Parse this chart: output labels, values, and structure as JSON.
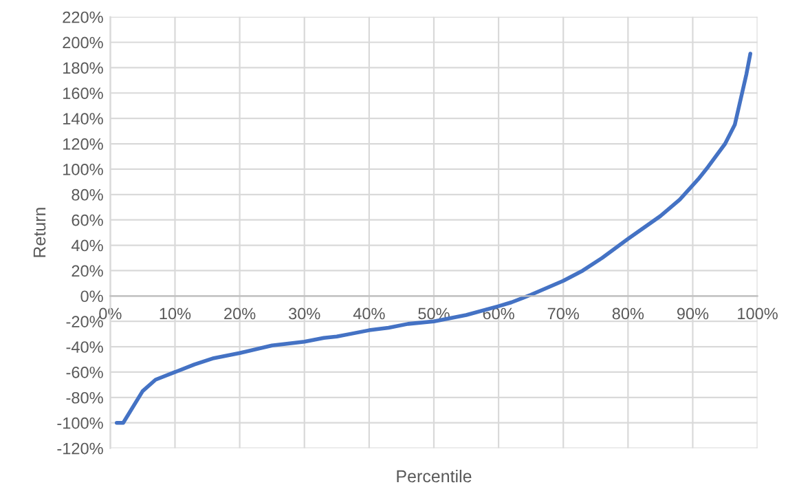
{
  "chart_data": {
    "type": "line",
    "xlabel": "Percentile",
    "ylabel": "Return",
    "series": [
      {
        "color": "#4472c4",
        "x": [
          1,
          2,
          5,
          7,
          10,
          13,
          16,
          20,
          25,
          30,
          33,
          35,
          37,
          40,
          43,
          46,
          50,
          55,
          60,
          62,
          65,
          70,
          73,
          76,
          80,
          85,
          88,
          91,
          92.4,
          95,
          96.5,
          98.3,
          98.9
        ],
        "values": [
          -100,
          -100,
          -75,
          -66,
          -60,
          -54,
          -49,
          -45,
          -39,
          -36,
          -33,
          -32,
          -30,
          -27,
          -25,
          -22,
          -20,
          -15,
          -8,
          -5,
          1,
          12,
          20,
          30,
          45,
          63,
          76,
          93,
          102,
          120,
          135,
          175,
          191
        ]
      }
    ],
    "xlim": [
      0,
      100
    ],
    "xticks": [
      {
        "value": 0,
        "label": "0%"
      },
      {
        "value": 10,
        "label": "10%"
      },
      {
        "value": 20,
        "label": "20%"
      },
      {
        "value": 30,
        "label": "30%"
      },
      {
        "value": 40,
        "label": "40%"
      },
      {
        "value": 50,
        "label": "50%"
      },
      {
        "value": 60,
        "label": "60%"
      },
      {
        "value": 70,
        "label": "70%"
      },
      {
        "value": 80,
        "label": "80%"
      },
      {
        "value": 90,
        "label": "90%"
      },
      {
        "value": 100,
        "label": "100%"
      }
    ],
    "ylim": [
      -120,
      220
    ],
    "yticks": [
      {
        "value": -120,
        "label": "-120%"
      },
      {
        "value": -100,
        "label": "-100%"
      },
      {
        "value": -80,
        "label": "-80%"
      },
      {
        "value": -60,
        "label": "-60%"
      },
      {
        "value": -40,
        "label": "-40%"
      },
      {
        "value": -20,
        "label": "-20%"
      },
      {
        "value": 0,
        "label": "0%"
      },
      {
        "value": 20,
        "label": "20%"
      },
      {
        "value": 40,
        "label": "40%"
      },
      {
        "value": 60,
        "label": "60%"
      },
      {
        "value": 80,
        "label": "80%"
      },
      {
        "value": 100,
        "label": "100%"
      },
      {
        "value": 120,
        "label": "120%"
      },
      {
        "value": 140,
        "label": "140%"
      },
      {
        "value": 160,
        "label": "160%"
      },
      {
        "value": 180,
        "label": "180%"
      },
      {
        "value": 200,
        "label": "200%"
      },
      {
        "value": 220,
        "label": "220%"
      }
    ],
    "grid": true,
    "marker": "none",
    "line_style": "solid"
  }
}
